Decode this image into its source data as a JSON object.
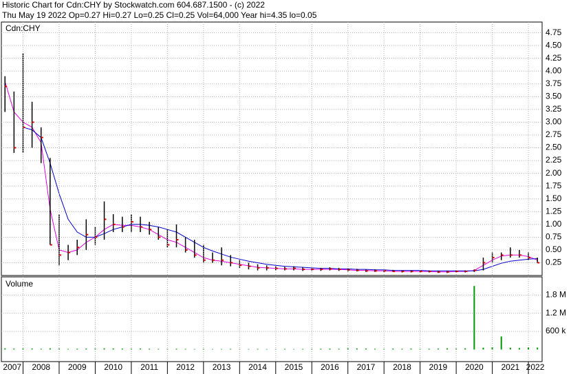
{
  "chart_data": [
    {
      "type": "ohlc",
      "title": "Historic Chart for Cdn:CHY by Stockwatch.com 604.687.1500 - (c) 2022",
      "subtitle": "Thu May 19 2022  Op=0.27  Hi=0.27  Lo=0.25  Cl=0.25  Vol=64,000  Year hi=4.35  lo=0.05",
      "label": "Cdn:CHY",
      "x": [
        2007.5,
        2007.75,
        2008,
        2008.25,
        2008.5,
        2008.75,
        2009,
        2009.25,
        2009.5,
        2009.75,
        2010,
        2010.25,
        2010.5,
        2010.75,
        2011,
        2011.25,
        2011.5,
        2011.75,
        2012,
        2012.25,
        2012.5,
        2012.75,
        2013,
        2013.25,
        2013.5,
        2013.75,
        2014,
        2014.25,
        2014.5,
        2014.75,
        2015,
        2015.25,
        2015.5,
        2015.75,
        2016,
        2016.25,
        2016.5,
        2016.75,
        2017,
        2017.25,
        2017.5,
        2017.75,
        2018,
        2018.25,
        2018.5,
        2018.75,
        2019,
        2019.25,
        2019.5,
        2019.75,
        2020,
        2020.25,
        2020.5,
        2020.75,
        2021,
        2021.25,
        2021.5,
        2021.75,
        2022,
        2022.25
      ],
      "high": [
        3.9,
        3.6,
        4.35,
        3.4,
        2.9,
        2.3,
        1.2,
        0.6,
        0.7,
        1.1,
        0.95,
        1.45,
        1.2,
        1.15,
        1.2,
        1.15,
        1.05,
        0.95,
        0.9,
        1.0,
        0.75,
        0.7,
        0.6,
        0.45,
        0.55,
        0.4,
        0.3,
        0.25,
        0.22,
        0.2,
        0.18,
        0.17,
        0.18,
        0.16,
        0.15,
        0.15,
        0.16,
        0.15,
        0.14,
        0.13,
        0.12,
        0.12,
        0.11,
        0.11,
        0.1,
        0.1,
        0.1,
        0.1,
        0.09,
        0.09,
        0.1,
        0.1,
        0.12,
        0.35,
        0.45,
        0.45,
        0.55,
        0.5,
        0.45,
        0.35
      ],
      "low": [
        3.2,
        2.4,
        2.4,
        2.5,
        2.2,
        0.6,
        0.2,
        0.3,
        0.4,
        0.5,
        0.6,
        0.7,
        0.85,
        0.85,
        0.85,
        0.85,
        0.8,
        0.7,
        0.55,
        0.55,
        0.45,
        0.35,
        0.25,
        0.25,
        0.2,
        0.18,
        0.15,
        0.12,
        0.1,
        0.1,
        0.1,
        0.1,
        0.1,
        0.09,
        0.09,
        0.09,
        0.1,
        0.09,
        0.08,
        0.08,
        0.07,
        0.07,
        0.07,
        0.07,
        0.06,
        0.06,
        0.06,
        0.06,
        0.05,
        0.05,
        0.06,
        0.06,
        0.07,
        0.1,
        0.25,
        0.3,
        0.35,
        0.35,
        0.3,
        0.25
      ],
      "close": [
        3.7,
        2.5,
        2.9,
        3.0,
        2.7,
        0.6,
        0.4,
        0.45,
        0.55,
        0.8,
        0.75,
        1.1,
        1.0,
        0.95,
        1.05,
        0.95,
        0.9,
        0.75,
        0.6,
        0.7,
        0.5,
        0.4,
        0.3,
        0.3,
        0.3,
        0.25,
        0.2,
        0.18,
        0.15,
        0.15,
        0.14,
        0.13,
        0.14,
        0.12,
        0.12,
        0.12,
        0.13,
        0.12,
        0.11,
        0.1,
        0.09,
        0.09,
        0.09,
        0.08,
        0.08,
        0.08,
        0.08,
        0.08,
        0.07,
        0.07,
        0.08,
        0.08,
        0.1,
        0.25,
        0.35,
        0.4,
        0.4,
        0.4,
        0.35,
        0.25
      ],
      "bar_color": "#000000",
      "close_color": "#e00000",
      "series": [
        {
          "color": "#e000e0",
          "values": [
            3.8,
            3.2,
            3.0,
            2.9,
            2.6,
            1.3,
            0.5,
            0.45,
            0.5,
            0.65,
            0.75,
            0.9,
            1.0,
            0.98,
            0.98,
            0.95,
            0.9,
            0.8,
            0.7,
            0.65,
            0.55,
            0.45,
            0.35,
            0.3,
            0.28,
            0.25,
            0.22,
            0.19,
            0.16,
            0.15,
            0.14,
            0.13,
            0.13,
            0.12,
            0.12,
            0.12,
            0.12,
            0.12,
            0.11,
            0.1,
            0.1,
            0.09,
            0.09,
            0.08,
            0.08,
            0.08,
            0.08,
            0.08,
            0.07,
            0.07,
            0.08,
            0.08,
            0.1,
            0.2,
            0.3,
            0.38,
            0.4,
            0.4,
            0.37,
            0.3
          ]
        },
        {
          "color": "#0000cc",
          "values": [
            null,
            null,
            2.9,
            2.85,
            2.7,
            2.2,
            1.6,
            1.1,
            0.85,
            0.75,
            0.75,
            0.82,
            0.9,
            0.95,
            1.0,
            1.0,
            0.98,
            0.95,
            0.9,
            0.85,
            0.75,
            0.65,
            0.55,
            0.48,
            0.42,
            0.36,
            0.32,
            0.28,
            0.25,
            0.22,
            0.2,
            0.18,
            0.17,
            0.16,
            0.15,
            0.14,
            0.14,
            0.13,
            0.13,
            0.12,
            0.12,
            0.11,
            0.11,
            0.1,
            0.1,
            0.1,
            0.1,
            0.09,
            0.09,
            0.09,
            0.09,
            0.09,
            0.09,
            0.12,
            0.18,
            0.24,
            0.28,
            0.3,
            0.32,
            0.33
          ]
        }
      ],
      "xlim": [
        2007.4,
        2022.38
      ],
      "ylim": [
        0,
        4.96
      ],
      "yticks": [
        0.25,
        {
          "value": 0.5,
          "label": "0.50"
        },
        0.75,
        {
          "value": 1,
          "label": "1.00"
        },
        1.25,
        {
          "value": 1.5,
          "label": "1.50"
        },
        1.75,
        {
          "value": 2,
          "label": "2.00"
        },
        2.25,
        {
          "value": 2.5,
          "label": "2.50"
        },
        2.75,
        {
          "value": 3,
          "label": "3.00"
        },
        3.25,
        {
          "value": 3.5,
          "label": "3.50"
        },
        3.75,
        {
          "value": 4,
          "label": "4.00"
        },
        4.25,
        {
          "value": 4.5,
          "label": "4.50"
        },
        4.75
      ],
      "grid": true
    },
    {
      "type": "bar",
      "label": "Volume",
      "color": "#009900",
      "x": [
        2007.5,
        2007.75,
        2008,
        2008.25,
        2008.5,
        2008.75,
        2009,
        2009.25,
        2009.5,
        2009.75,
        2010,
        2010.25,
        2010.5,
        2010.75,
        2011,
        2011.25,
        2011.5,
        2011.75,
        2012,
        2012.25,
        2012.5,
        2012.75,
        2013,
        2013.25,
        2013.5,
        2013.75,
        2014,
        2014.25,
        2014.5,
        2014.75,
        2015,
        2015.25,
        2015.5,
        2015.75,
        2016,
        2016.25,
        2016.5,
        2016.75,
        2017,
        2017.25,
        2017.5,
        2017.75,
        2018,
        2018.25,
        2018.5,
        2018.75,
        2019,
        2019.25,
        2019.5,
        2019.75,
        2020,
        2020.25,
        2020.5,
        2020.75,
        2021,
        2021.25,
        2021.5,
        2021.75,
        2022,
        2022.25
      ],
      "values": [
        40000,
        30000,
        35000,
        30000,
        25000,
        40000,
        30000,
        20000,
        25000,
        30000,
        30000,
        40000,
        35000,
        30000,
        25000,
        30000,
        25000,
        20000,
        20000,
        25000,
        20000,
        15000,
        20000,
        15000,
        15000,
        20000,
        15000,
        15000,
        20000,
        15000,
        15000,
        20000,
        15000,
        20000,
        20000,
        25000,
        30000,
        25000,
        40000,
        35000,
        30000,
        25000,
        20000,
        30000,
        25000,
        30000,
        20000,
        25000,
        30000,
        40000,
        30000,
        40000,
        2100000,
        60000,
        80000,
        430000,
        60000,
        50000,
        70000,
        64000
      ],
      "xlim": [
        2007.4,
        2022.38
      ],
      "ylim": [
        -400000,
        2400000
      ],
      "yticks": [
        {
          "value": 600000,
          "label": "600 k"
        },
        {
          "value": 1200000,
          "label": "1.2 M"
        },
        {
          "value": 1800000,
          "label": "1.8 M"
        }
      ],
      "xticks": [
        {
          "value": 2007,
          "label": "2007"
        },
        {
          "value": 2008,
          "label": "2008"
        },
        {
          "value": 2009,
          "label": "2009"
        },
        {
          "value": 2010,
          "label": "2010"
        },
        {
          "value": 2011,
          "label": "2011"
        },
        {
          "value": 2012,
          "label": "2012"
        },
        {
          "value": 2013,
          "label": "2013"
        },
        {
          "value": 2014,
          "label": "2014"
        },
        {
          "value": 2015,
          "label": "2015"
        },
        {
          "value": 2016,
          "label": "2016"
        },
        {
          "value": 2017,
          "label": "2017"
        },
        {
          "value": 2018,
          "label": "2018"
        },
        {
          "value": 2019,
          "label": "2019"
        },
        {
          "value": 2020,
          "label": "2020"
        },
        {
          "value": 2021,
          "label": "2021"
        },
        {
          "value": 2022,
          "label": "2022"
        }
      ],
      "grid": true
    }
  ]
}
